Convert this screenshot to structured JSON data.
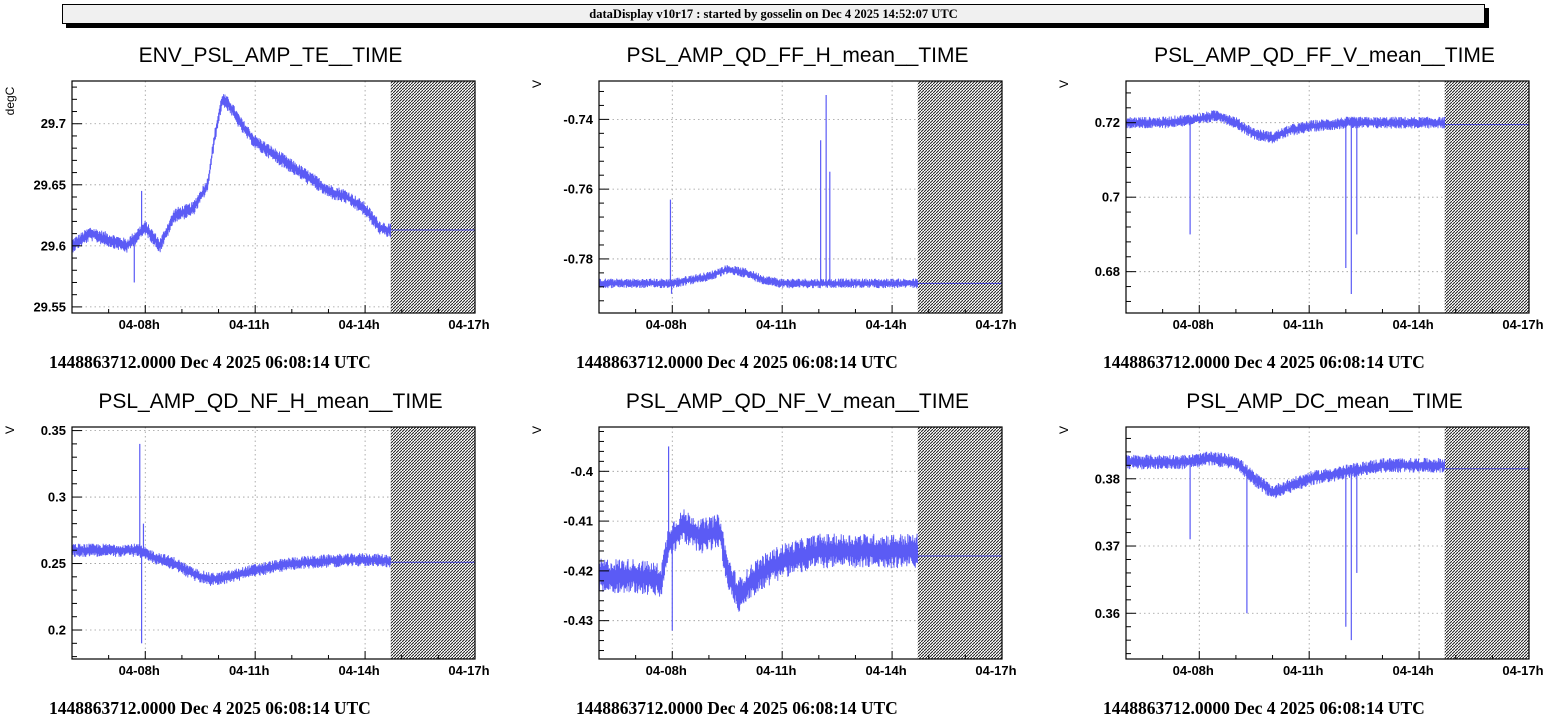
{
  "header": {
    "text": "dataDisplay v10r17 : started by gosselin on Dec  4 2025 14:52:07 UTC"
  },
  "colors": {
    "trace": "#5b5bf5",
    "frame": "#000000",
    "future_fill": "#3c3c3c"
  },
  "chart_data": [
    {
      "type": "line",
      "title": "ENV_PSL_AMP_TE__TIME",
      "ylabel": "degC",
      "xlabel": "",
      "ylim": [
        29.545,
        29.735
      ],
      "yticks": [
        29.55,
        29.6,
        29.65,
        29.7
      ],
      "ytick_labels": [
        "29.55",
        "29.6",
        "29.65",
        "29.7"
      ],
      "xlim": [
        6,
        17
      ],
      "xticks": [
        8,
        11,
        14,
        17
      ],
      "xtick_labels": [
        "04-08h",
        "04-11h",
        "04-14h",
        "04-17h"
      ],
      "data_end_hour": 14.7,
      "series": [
        {
          "name": "ENV_PSL_AMP_TE",
          "x": [
            6,
            6.5,
            7,
            7.5,
            8,
            8.4,
            8.8,
            9.3,
            9.7,
            9.9,
            10.1,
            10.3,
            10.6,
            11,
            11.5,
            12,
            12.5,
            13,
            13.5,
            14,
            14.4,
            14.7
          ],
          "y": [
            29.6,
            29.61,
            29.605,
            29.6,
            29.615,
            29.6,
            29.625,
            29.63,
            29.65,
            29.69,
            29.72,
            29.715,
            29.7,
            29.685,
            29.675,
            29.665,
            29.655,
            29.645,
            29.64,
            29.63,
            29.615,
            29.612
          ],
          "noise": 0.006,
          "spikes": [
            [
              7.7,
              29.57
            ],
            [
              7.9,
              29.645
            ]
          ]
        }
      ],
      "flat_value": 29.613,
      "timestamp": "1448863712.0000 Dec 4 2025 06:08:14 UTC"
    },
    {
      "type": "line",
      "title": "PSL_AMP_QD_FF_H_mean__TIME",
      "ylabel": "V",
      "xlabel": "",
      "ylim": [
        -0.7955,
        -0.729
      ],
      "yticks": [
        -0.78,
        -0.76,
        -0.74
      ],
      "ytick_labels": [
        "-0.78",
        "-0.76",
        "-0.74"
      ],
      "xlim": [
        6,
        17
      ],
      "xticks": [
        8,
        11,
        14,
        17
      ],
      "xtick_labels": [
        "04-08h",
        "04-11h",
        "04-14h",
        "04-17h"
      ],
      "data_end_hour": 14.7,
      "series": [
        {
          "name": "PSL_AMP_QD_FF_H_mean",
          "x": [
            6,
            7,
            8,
            8.5,
            9,
            9.5,
            10,
            10.5,
            11,
            12,
            13,
            14,
            14.7
          ],
          "y": [
            -0.787,
            -0.787,
            -0.787,
            -0.786,
            -0.785,
            -0.783,
            -0.784,
            -0.786,
            -0.787,
            -0.787,
            -0.787,
            -0.787,
            -0.787
          ],
          "noise": 0.0014,
          "spikes": [
            [
              7.95,
              -0.763
            ],
            [
              7.98,
              -0.79
            ],
            [
              12.05,
              -0.746
            ],
            [
              12.2,
              -0.733
            ],
            [
              12.3,
              -0.755
            ]
          ]
        }
      ],
      "flat_value": -0.787,
      "timestamp": "1448863712.0000 Dec 4 2025 06:08:14 UTC"
    },
    {
      "type": "line",
      "title": "PSL_AMP_QD_FF_V_mean__TIME",
      "ylabel": "V",
      "xlabel": "",
      "ylim": [
        0.6689,
        0.7312
      ],
      "yticks": [
        0.68,
        0.7,
        0.72
      ],
      "ytick_labels": [
        "0.68",
        "0.7",
        "0.72"
      ],
      "xlim": [
        6,
        17
      ],
      "xticks": [
        8,
        11,
        14,
        17
      ],
      "xtick_labels": [
        "04-08h",
        "04-11h",
        "04-14h",
        "04-17h"
      ],
      "data_end_hour": 14.7,
      "series": [
        {
          "name": "PSL_AMP_QD_FF_V_mean",
          "x": [
            6,
            7,
            8,
            8.5,
            9,
            9.5,
            10,
            10.5,
            11,
            12,
            13,
            14,
            14.7
          ],
          "y": [
            0.72,
            0.72,
            0.721,
            0.722,
            0.72,
            0.717,
            0.716,
            0.718,
            0.719,
            0.72,
            0.72,
            0.72,
            0.72
          ],
          "noise": 0.0016,
          "spikes": [
            [
              7.75,
              0.69
            ],
            [
              12.0,
              0.681
            ],
            [
              12.15,
              0.674
            ],
            [
              12.3,
              0.69
            ]
          ]
        }
      ],
      "flat_value": 0.7195,
      "timestamp": "1448863712.0000 Dec 4 2025 06:08:14 UTC"
    },
    {
      "type": "line",
      "title": "PSL_AMP_QD_NF_H_mean__TIME",
      "ylabel": "V",
      "xlabel": "",
      "ylim": [
        0.1782,
        0.3527
      ],
      "yticks": [
        0.2,
        0.25,
        0.3,
        0.35
      ],
      "ytick_labels": [
        "0.2",
        "0.25",
        "0.3",
        "0.35"
      ],
      "xlim": [
        6,
        17
      ],
      "xticks": [
        8,
        11,
        14,
        17
      ],
      "xtick_labels": [
        "04-08h",
        "04-11h",
        "04-14h",
        "04-17h"
      ],
      "data_end_hour": 14.7,
      "series": [
        {
          "name": "PSL_AMP_QD_NF_H_mean",
          "x": [
            6,
            7,
            7.8,
            8.2,
            8.8,
            9.3,
            9.8,
            10.3,
            11,
            12,
            13,
            14,
            14.7
          ],
          "y": [
            0.26,
            0.26,
            0.26,
            0.255,
            0.25,
            0.242,
            0.238,
            0.24,
            0.245,
            0.25,
            0.252,
            0.253,
            0.252
          ],
          "noise": 0.005,
          "spikes": [
            [
              7.85,
              0.34
            ],
            [
              7.9,
              0.19
            ],
            [
              7.95,
              0.28
            ]
          ]
        }
      ],
      "flat_value": 0.251,
      "timestamp": "1448863712.0000 Dec 4 2025 06:08:14 UTC"
    },
    {
      "type": "line",
      "title": "PSL_AMP_QD_NF_V_mean__TIME",
      "ylabel": "V",
      "xlabel": "",
      "ylim": [
        -0.4377,
        -0.3911
      ],
      "yticks": [
        -0.43,
        -0.42,
        -0.41,
        -0.4
      ],
      "ytick_labels": [
        "-0.43",
        "-0.42",
        "-0.41",
        "-0.4"
      ],
      "xlim": [
        6,
        17
      ],
      "xticks": [
        8,
        11,
        14,
        17
      ],
      "xtick_labels": [
        "04-08h",
        "04-11h",
        "04-14h",
        "04-17h"
      ],
      "data_end_hour": 14.7,
      "series": [
        {
          "name": "PSL_AMP_QD_NF_V_mean",
          "x": [
            6,
            7,
            7.7,
            7.9,
            8.3,
            8.8,
            9.3,
            9.5,
            9.8,
            10.3,
            11,
            12,
            13,
            14,
            14.7
          ],
          "y": [
            -0.421,
            -0.421,
            -0.422,
            -0.414,
            -0.411,
            -0.413,
            -0.412,
            -0.42,
            -0.425,
            -0.421,
            -0.418,
            -0.416,
            -0.416,
            -0.416,
            -0.416
          ],
          "noise": 0.0035,
          "spikes": [
            [
              7.9,
              -0.395
            ],
            [
              8.0,
              -0.432
            ]
          ]
        }
      ],
      "flat_value": -0.417,
      "timestamp": "1448863712.0000 Dec 4 2025 06:08:14 UTC"
    },
    {
      "type": "line",
      "title": "PSL_AMP_DC_mean__TIME",
      "ylabel": "V",
      "xlabel": "",
      "ylim": [
        0.3532,
        0.3877
      ],
      "yticks": [
        0.36,
        0.37,
        0.38
      ],
      "ytick_labels": [
        "0.36",
        "0.37",
        "0.38"
      ],
      "xlim": [
        6,
        17
      ],
      "xticks": [
        8,
        11,
        14,
        17
      ],
      "xtick_labels": [
        "04-08h",
        "04-11h",
        "04-14h",
        "04-17h"
      ],
      "data_end_hour": 14.7,
      "series": [
        {
          "name": "PSL_AMP_DC_mean",
          "x": [
            6,
            7,
            7.7,
            8.3,
            9,
            9.5,
            10,
            10.5,
            11,
            12,
            13,
            14,
            14.7
          ],
          "y": [
            0.3825,
            0.3825,
            0.3825,
            0.383,
            0.3825,
            0.38,
            0.378,
            0.379,
            0.38,
            0.381,
            0.382,
            0.382,
            0.382
          ],
          "noise": 0.0011,
          "spikes": [
            [
              7.75,
              0.371
            ],
            [
              9.3,
              0.36
            ],
            [
              12.0,
              0.358
            ],
            [
              12.15,
              0.356
            ],
            [
              12.3,
              0.366
            ]
          ]
        }
      ],
      "flat_value": 0.3815,
      "timestamp": "1448863712.0000 Dec 4 2025 06:08:14 UTC"
    }
  ]
}
